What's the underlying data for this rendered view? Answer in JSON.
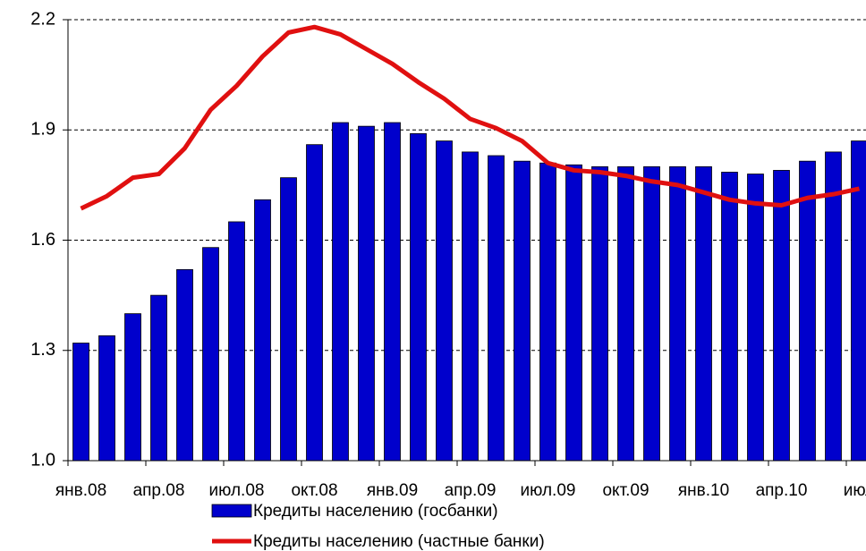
{
  "chart_data": {
    "type": "bar-line",
    "categories": [
      "янв.08",
      null,
      null,
      "апр.08",
      null,
      null,
      "июл.08",
      null,
      null,
      "окт.08",
      null,
      null,
      "янв.09",
      null,
      null,
      "апр.09",
      null,
      null,
      "июл.09",
      null,
      null,
      "окт.09",
      null,
      null,
      "янв.10",
      null,
      null,
      "апр.10",
      null,
      null,
      "июл"
    ],
    "series": [
      {
        "name": "Кредиты населению (госбанки)",
        "type": "bar",
        "color": "#0000cc",
        "values": [
          1.32,
          1.34,
          1.4,
          1.45,
          1.52,
          1.58,
          1.65,
          1.71,
          1.77,
          1.86,
          1.92,
          1.91,
          1.92,
          1.89,
          1.87,
          1.84,
          1.83,
          1.815,
          1.81,
          1.805,
          1.8,
          1.8,
          1.8,
          1.8,
          1.8,
          1.785,
          1.78,
          1.79,
          1.815,
          1.84,
          1.87
        ]
      },
      {
        "name": "Кредиты населению (частные банки)",
        "type": "line",
        "color": "#e01010",
        "values": [
          1.686,
          1.72,
          1.77,
          1.78,
          1.85,
          1.955,
          2.02,
          2.1,
          2.165,
          2.18,
          2.16,
          2.12,
          2.08,
          2.03,
          1.985,
          1.93,
          1.905,
          1.87,
          1.81,
          1.79,
          1.785,
          1.775,
          1.76,
          1.75,
          1.73,
          1.71,
          1.7,
          1.695,
          1.715,
          1.725,
          1.74
        ]
      }
    ],
    "ylim": [
      1.0,
      2.2
    ],
    "yticks": [
      {
        "value": 1.0,
        "label": "1.0"
      },
      1.3,
      1.6,
      1.9,
      2.2
    ],
    "grid": true,
    "legend": "bottom"
  }
}
